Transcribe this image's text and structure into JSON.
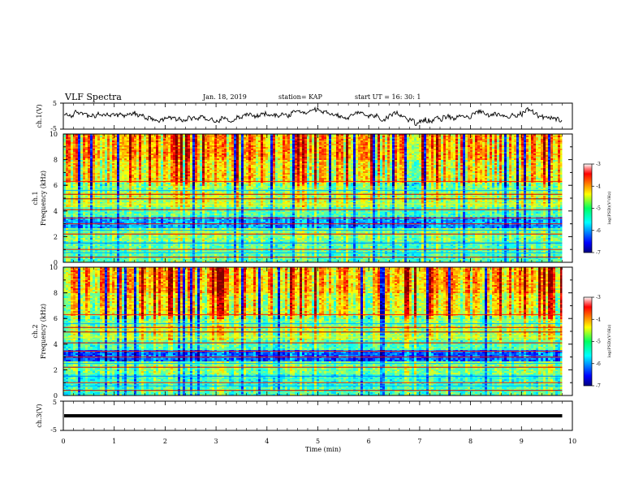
{
  "header": {
    "title": "VLF Spectra",
    "date": "Jan. 18, 2019",
    "station": "station= KAP",
    "start": "start UT =   16: 30: 1"
  },
  "chart_data": [
    {
      "id": "ch1-waveform",
      "type": "line",
      "ylabel": "ch.1(V)",
      "ylim": [
        -5,
        5
      ],
      "yticks": [
        "5",
        "-5"
      ],
      "xlim": [
        0,
        10
      ],
      "xlabel": "",
      "description_values": {
        "baseline_v": 0.0,
        "amplitude_v": 2.0
      }
    },
    {
      "id": "ch1-spectrogram",
      "type": "heatmap",
      "ylabel": "ch.1\nFrequency (kHz)",
      "ylabel_lines": [
        "ch.1",
        "Frequency (kHz)"
      ],
      "ylim": [
        0,
        10
      ],
      "yticks": [
        "0",
        "2",
        "4",
        "6",
        "8",
        "10"
      ],
      "xlim": [
        0,
        10
      ],
      "colorbar": {
        "label": "log(PSD)(V²/Hz)",
        "range": [
          -7,
          -3
        ],
        "ticks": [
          "-3",
          "-4",
          "-5",
          "-6",
          "-7"
        ]
      }
    },
    {
      "id": "ch2-spectrogram",
      "type": "heatmap",
      "ylabel_lines": [
        "ch.2",
        "Frequency (kHz)"
      ],
      "ylim": [
        0,
        10
      ],
      "yticks": [
        "0",
        "2",
        "4",
        "6",
        "8",
        "10"
      ],
      "xlim": [
        0,
        10
      ],
      "colorbar": {
        "label": "log(PSD)(V²/Hz)",
        "range": [
          -7,
          -3
        ],
        "ticks": [
          "-3",
          "-4",
          "-5",
          "-6",
          "-7"
        ]
      }
    },
    {
      "id": "ch3-waveform",
      "type": "line",
      "ylabel": "ch.3(V)",
      "ylim": [
        -5,
        5
      ],
      "yticks": [
        "5",
        "-5"
      ],
      "xlim": [
        0,
        10
      ],
      "values_constant_v": 0.0
    }
  ],
  "xaxis": {
    "label": "Time (min)",
    "ticks": [
      "0",
      "1",
      "2",
      "3",
      "4",
      "5",
      "6",
      "7",
      "8",
      "9",
      "10"
    ],
    "data_end_min": 9.8
  }
}
